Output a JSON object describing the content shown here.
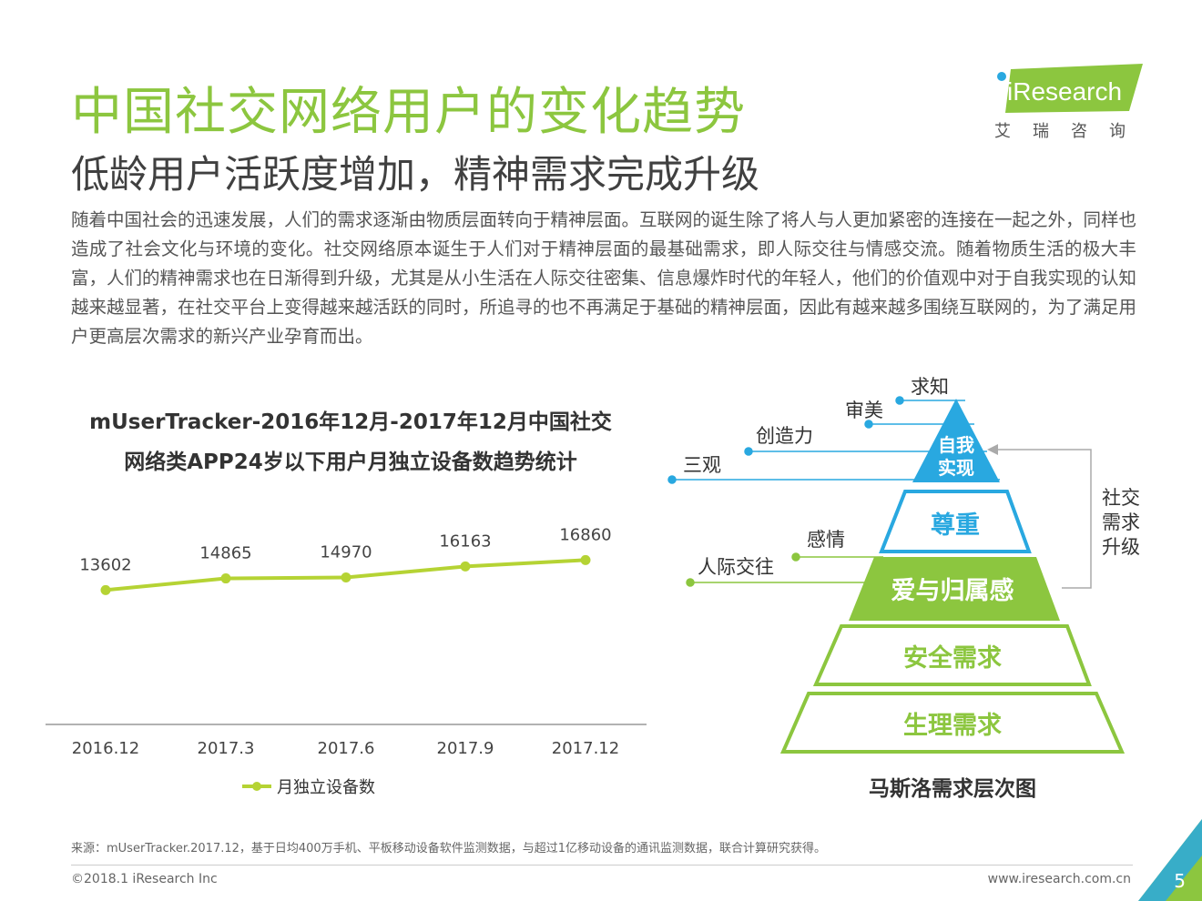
{
  "header": {
    "title": "中国社交网络用户的变化趋势",
    "subtitle": "低龄用户活跃度增加，精神需求完成升级",
    "logo_text": "iResearch",
    "logo_cn": "艾瑞咨询"
  },
  "body": {
    "paragraph": "随着中国社会的迅速发展，人们的需求逐渐由物质层面转向于精神层面。互联网的诞生除了将人与人更加紧密的连接在一起之外，同样也造成了社会文化与环境的变化。社交网络原本诞生于人们对于精神层面的最基础需求，即人际交往与情感交流。随着物质生活的极大丰富，人们的精神需求也在日渐得到升级，尤其是从小生活在人际交往密集、信息爆炸时代的年轻人，他们的价值观中对于自我实现的认知越来越显著，在社交平台上变得越来越活跃的同时，所追寻的也不再满足于基础的精神层面，因此有越来越多围绕互联网的，为了满足用户更高层次需求的新兴产业孕育而出。"
  },
  "chart_title": {
    "line1": "mUserTracker-2016年12月-2017年12月中国社交",
    "line2": "网络类APP24岁以下用户月独立设备数趋势统计"
  },
  "chart_data": {
    "type": "line",
    "categories": [
      "2016.12",
      "2017.3",
      "2017.6",
      "2017.9",
      "2017.12"
    ],
    "series": [
      {
        "name": "月独立设备数",
        "values": [
          13602,
          14865,
          14970,
          16163,
          16860
        ]
      }
    ],
    "value_labels": [
      "13602",
      "14865",
      "14970",
      "16163",
      "16860"
    ],
    "ylim": [
      0,
      21500
    ],
    "color": "#b5d334"
  },
  "pyramid": {
    "caption": "马斯洛需求层次图",
    "levels": [
      "自我实现",
      "尊重",
      "爱与归属感",
      "安全需求",
      "生理需求"
    ],
    "level1_lines": [
      "自我",
      "实现"
    ],
    "annotations_top": [
      "求知",
      "审美",
      "创造力",
      "三观"
    ],
    "annotations_mid": [
      "感情",
      "人际交往"
    ],
    "side_label": [
      "社交",
      "需求",
      "升级"
    ],
    "colors": {
      "green": "#8cc63f",
      "blue": "#29a8e0"
    }
  },
  "footer": {
    "source": "来源：mUserTracker.2017.12，基于日均400万手机、平板移动设备软件监测数据，与超过1亿移动设备的通讯监测数据，联合计算研究获得。",
    "copyright": "©2018.1 iResearch Inc",
    "website": "www.iresearch.com.cn",
    "page_number": "5"
  }
}
